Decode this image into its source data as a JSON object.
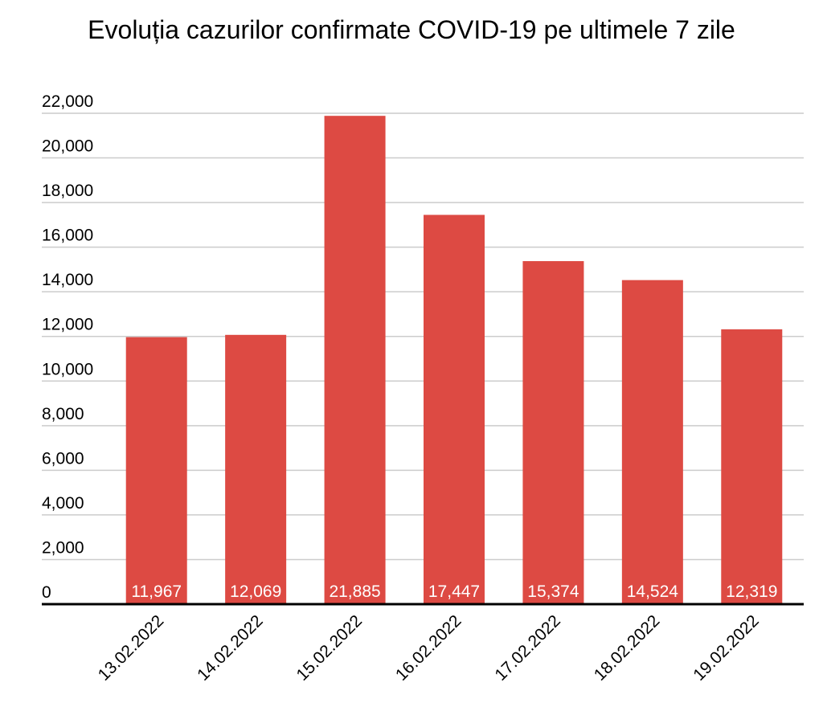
{
  "chart_data": {
    "type": "bar",
    "title": "Evoluția cazurilor confirmate COVID-19 pe ultimele 7 zile",
    "categories": [
      "13.02.2022",
      "14.02.2022",
      "15.02.2022",
      "16.02.2022",
      "17.02.2022",
      "18.02.2022",
      "19.02.2022"
    ],
    "values": [
      11967,
      12069,
      21885,
      17447,
      15374,
      14524,
      12319
    ],
    "value_labels": [
      "11,967",
      "12,069",
      "21,885",
      "17,447",
      "15,374",
      "14,524",
      "12,319"
    ],
    "color": "#dd4a43",
    "ylim": [
      0,
      22000
    ],
    "yticks": [
      0,
      {
        "value": 2000,
        "label": "2,000"
      },
      {
        "value": 4000,
        "label": "4,000"
      },
      {
        "value": 6000,
        "label": "6,000"
      },
      {
        "value": 8000,
        "label": "8,000"
      },
      {
        "value": 10000,
        "label": "10,000"
      },
      {
        "value": 12000,
        "label": "12,000"
      },
      {
        "value": 14000,
        "label": "14,000"
      },
      {
        "value": 16000,
        "label": "16,000"
      },
      {
        "value": 18000,
        "label": "18,000"
      },
      {
        "value": 20000,
        "label": "20,000"
      },
      {
        "value": 22000,
        "label": "22,000"
      }
    ],
    "grid": true
  }
}
